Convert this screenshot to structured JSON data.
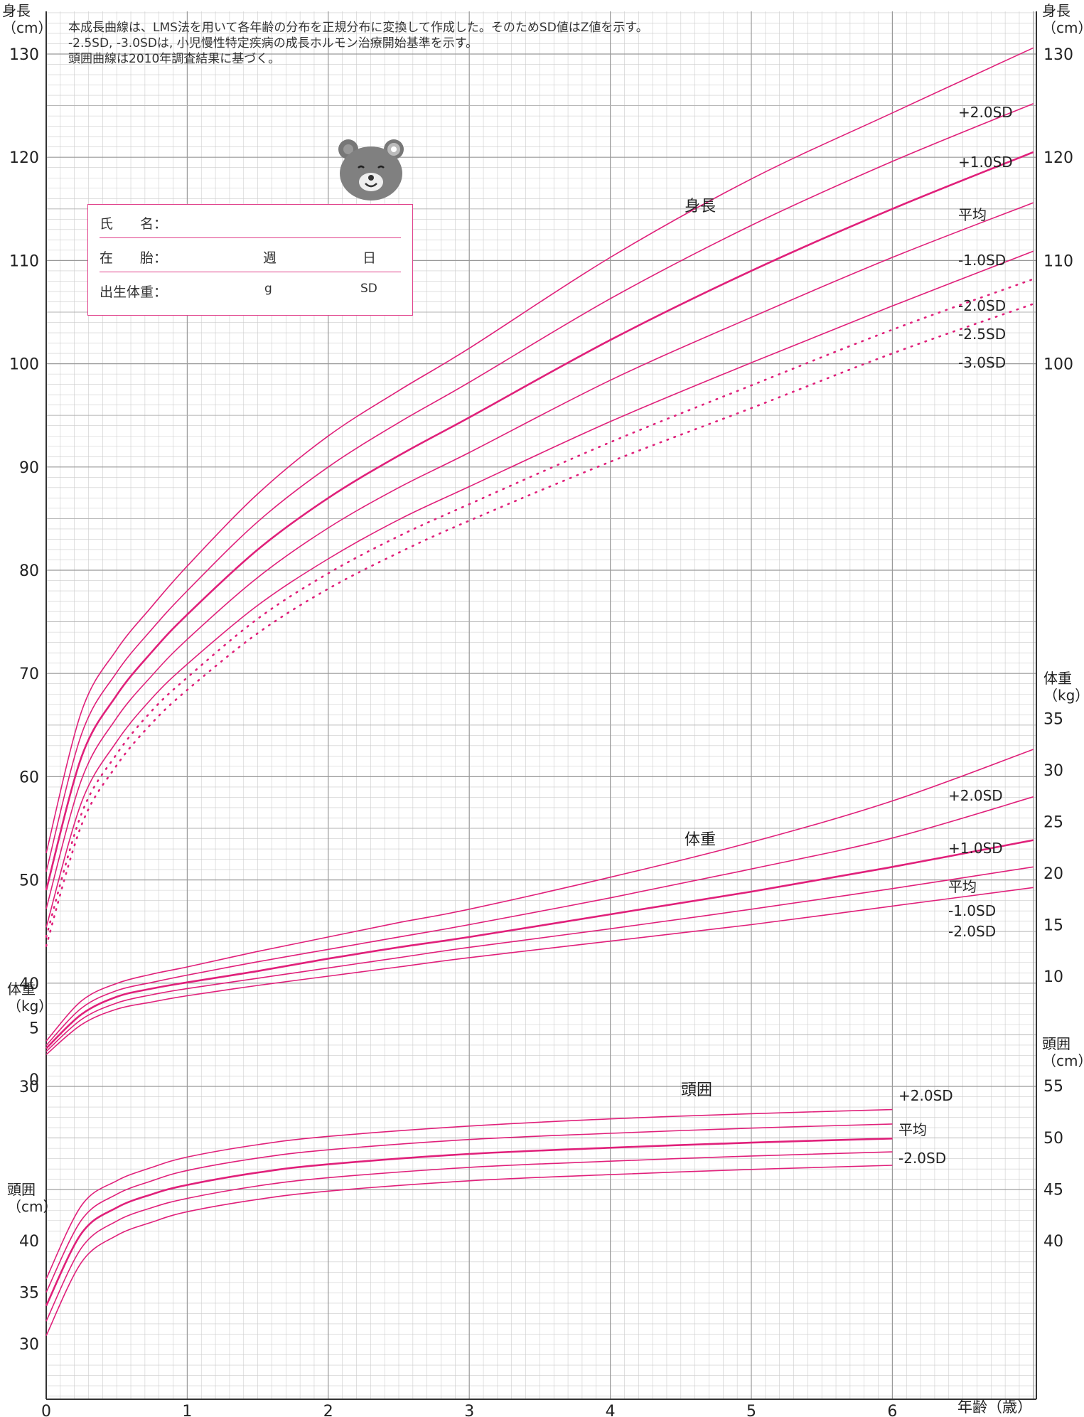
{
  "notes": [
    "本成長曲線は、LMS法を用いて各年齢の分布を正規分布に変換して作成した。そのためSD値はZ値を示す。",
    "-2.5SD, -3.0SDは, 小児慢性特定疾病の成長ホルモン治療開始基準を示す。",
    "頭囲曲線は2010年調査結果に基づく。"
  ],
  "info_box": {
    "name_label": "氏　　名：",
    "gestation_label": "在　　胎：",
    "week_unit": "週",
    "day_unit": "日",
    "birth_weight_label": "出生体重：",
    "gram_unit": "g",
    "sd_unit": "SD"
  },
  "colors": {
    "curve": "#e0207a",
    "grid_major": "#999999",
    "grid_minor": "#cccccc",
    "frame": "#333333"
  },
  "chart_data": {
    "type": "line",
    "xlabel": "年齢（歳）",
    "x_ticks": [
      0,
      1,
      2,
      3,
      4,
      5,
      6
    ],
    "xlim": [
      0,
      7
    ],
    "height": {
      "title": "身長",
      "axis_label_left": "身長\n（cm）",
      "axis_label_right": "身長\n（cm）",
      "ticks_left": [
        30,
        40,
        50,
        60,
        70,
        80,
        90,
        100,
        110,
        120,
        130
      ],
      "ticks_right": [
        100,
        110,
        120,
        130
      ],
      "x": [
        0,
        0.25,
        0.5,
        0.75,
        1,
        1.5,
        2,
        2.5,
        3,
        4,
        5,
        6,
        7
      ],
      "series": [
        {
          "name": "+2.0SD",
          "style": "solid",
          "values": [
            52.6,
            66.3,
            72.3,
            76.5,
            80.4,
            87.4,
            93.0,
            97.4,
            101.5,
            110.3,
            117.9,
            124.3,
            130.6
          ]
        },
        {
          "name": "+1.0SD",
          "style": "solid",
          "values": [
            50.8,
            64.1,
            70.1,
            74.3,
            78.0,
            84.7,
            90.0,
            94.3,
            98.2,
            106.3,
            113.4,
            119.6,
            125.2
          ]
        },
        {
          "name": "平均",
          "style": "solid",
          "values": [
            49.0,
            61.9,
            67.9,
            72.1,
            75.7,
            82.0,
            87.0,
            91.1,
            94.8,
            102.3,
            109.0,
            115.0,
            120.5
          ]
        },
        {
          "name": "-1.0SD",
          "style": "solid",
          "values": [
            47.2,
            59.7,
            65.7,
            69.8,
            73.3,
            79.3,
            84.1,
            88.0,
            91.4,
            98.4,
            104.5,
            110.3,
            115.6
          ]
        },
        {
          "name": "-2.0SD",
          "style": "solid",
          "values": [
            45.4,
            57.5,
            63.4,
            67.6,
            70.9,
            76.6,
            81.1,
            84.9,
            88.1,
            94.4,
            100.1,
            105.6,
            110.9
          ]
        },
        {
          "name": "-2.5SD",
          "style": "dotted",
          "values": [
            44.5,
            56.4,
            62.2,
            66.4,
            69.6,
            75.3,
            79.7,
            83.3,
            86.4,
            92.4,
            97.9,
            103.3,
            108.2
          ]
        },
        {
          "name": "-3.0SD",
          "style": "dotted",
          "values": [
            43.6,
            55.3,
            61.1,
            65.2,
            68.4,
            73.9,
            78.2,
            81.7,
            84.8,
            90.5,
            95.7,
            101.0,
            105.8
          ]
        }
      ]
    },
    "weight": {
      "title": "体重",
      "axis_label_left": "体重\n（kg）",
      "axis_label_right": "体重\n（kg）",
      "ticks_left": [
        0,
        5
      ],
      "ticks_right": [
        10,
        15,
        20,
        25,
        30,
        35
      ],
      "x": [
        0,
        0.25,
        0.5,
        0.75,
        1,
        1.5,
        2,
        2.5,
        3,
        4,
        5,
        6,
        7
      ],
      "series": [
        {
          "name": "+2.0SD",
          "values": [
            3.7,
            7.6,
            9.3,
            10.2,
            10.9,
            12.4,
            13.8,
            15.2,
            16.5,
            19.6,
            23.0,
            27.0,
            32.0
          ]
        },
        {
          "name": "+1.0SD",
          "values": [
            3.3,
            6.9,
            8.6,
            9.4,
            10.1,
            11.4,
            12.6,
            13.8,
            15.0,
            17.6,
            20.4,
            23.4,
            27.4
          ]
        },
        {
          "name": "平均",
          "values": [
            3.0,
            6.3,
            8.0,
            8.8,
            9.4,
            10.5,
            11.7,
            12.8,
            13.8,
            16.0,
            18.2,
            20.6,
            23.2
          ]
        },
        {
          "name": "-1.0SD",
          "values": [
            2.7,
            5.8,
            7.4,
            8.2,
            8.8,
            9.8,
            10.8,
            11.8,
            12.8,
            14.6,
            16.5,
            18.5,
            20.6
          ]
        },
        {
          "name": "-2.0SD",
          "values": [
            2.4,
            5.3,
            6.8,
            7.5,
            8.1,
            9.1,
            10.0,
            10.9,
            11.8,
            13.4,
            15.0,
            16.8,
            18.6
          ]
        }
      ]
    },
    "head": {
      "title": "頭囲",
      "axis_label_left": "頭囲\n（cm）",
      "axis_label_right": "頭囲\n（cm）",
      "ticks_left": [
        30,
        35,
        40
      ],
      "ticks_right": [
        40,
        45,
        50,
        55
      ],
      "x": [
        0,
        0.25,
        0.5,
        0.75,
        1,
        1.5,
        2,
        3,
        4,
        5,
        6
      ],
      "series": [
        {
          "name": "+2.0SD",
          "values": [
            36.3,
            43.4,
            45.8,
            47.1,
            48.1,
            49.3,
            50.1,
            51.1,
            51.8,
            52.3,
            52.7
          ]
        },
        {
          "name": "",
          "values": [
            35.0,
            42.0,
            44.5,
            45.8,
            46.8,
            48.0,
            48.8,
            49.8,
            50.4,
            50.9,
            51.3
          ]
        },
        {
          "name": "平均",
          "values": [
            33.7,
            40.7,
            43.2,
            44.5,
            45.4,
            46.6,
            47.4,
            48.4,
            49.0,
            49.5,
            49.9
          ]
        },
        {
          "name": "",
          "values": [
            32.2,
            39.3,
            41.9,
            43.2,
            44.1,
            45.3,
            46.1,
            47.1,
            47.7,
            48.2,
            48.6
          ]
        },
        {
          "name": "-2.0SD",
          "values": [
            30.8,
            37.9,
            40.5,
            41.8,
            42.8,
            44.0,
            44.8,
            45.8,
            46.4,
            46.9,
            47.3
          ]
        }
      ]
    }
  }
}
